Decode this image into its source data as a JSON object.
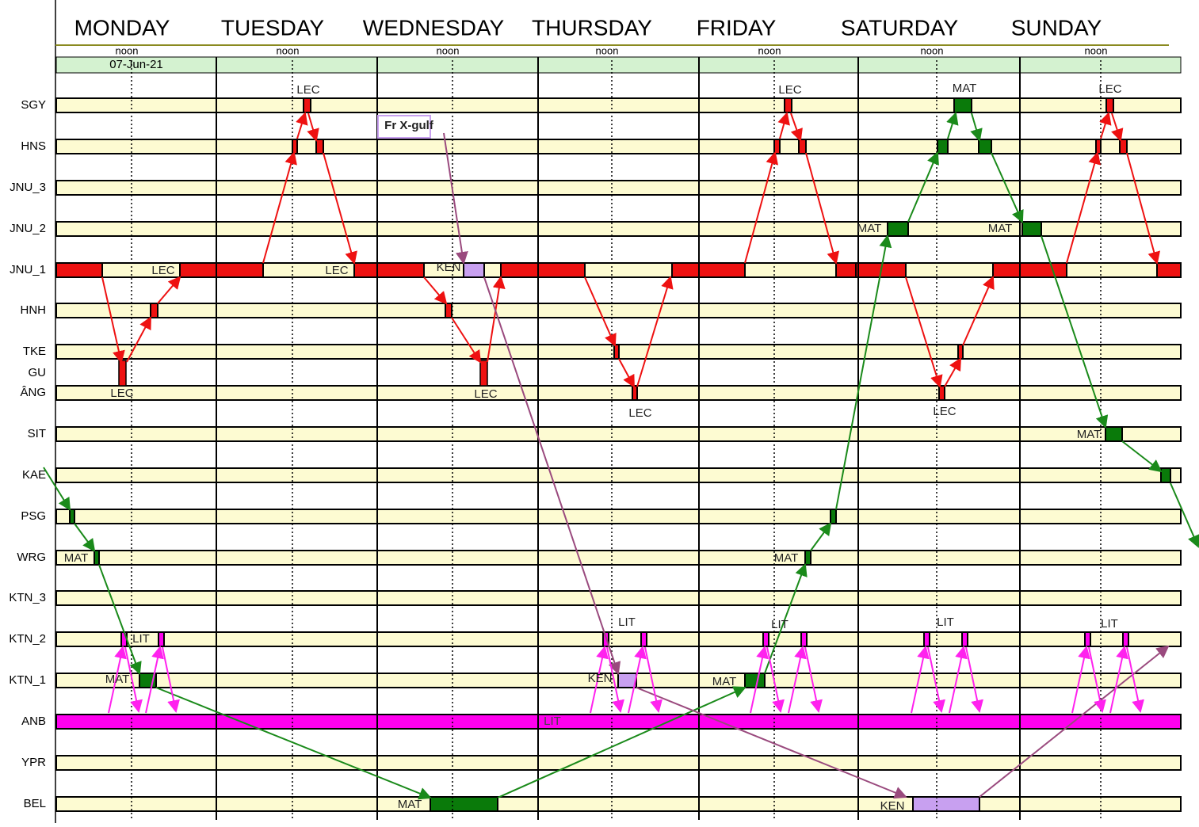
{
  "header": {
    "days": [
      "MONDAY",
      "TUESDAY",
      "WEDNESDAY",
      "THURSDAY",
      "FRIDAY",
      "SATURDAY",
      "SUNDAY"
    ],
    "noon_labels": [
      "noon",
      "noon",
      "noon",
      "noon",
      "noon",
      "noon",
      "noon"
    ],
    "date": "07-Jun-21"
  },
  "rows": [
    "SGY",
    "HNS",
    "JNU_3",
    "JNU_2",
    "JNU_1",
    "HNH",
    "TKE",
    "GU",
    "ÂNG",
    "SIT",
    "KAE",
    "PSG",
    "WRG",
    "KTN_3",
    "KTN_2",
    "KTN_1",
    "ANB",
    "YPR",
    "BEL"
  ],
  "annotations": [
    "LEC",
    "LEC",
    "LEC",
    "LEC",
    "KEN",
    "LEC",
    "LEC",
    "LEC",
    "MAT",
    "LEC",
    "MAT",
    "MAT",
    "LEC",
    "MAT",
    "MAT",
    "MAT",
    "LIT",
    "MAT",
    "LIT",
    "KEN",
    "LIT",
    "MAT",
    "LIT",
    "LIT",
    "LIT",
    "MAT",
    "KEN",
    "Fr X-gulf"
  ]
}
